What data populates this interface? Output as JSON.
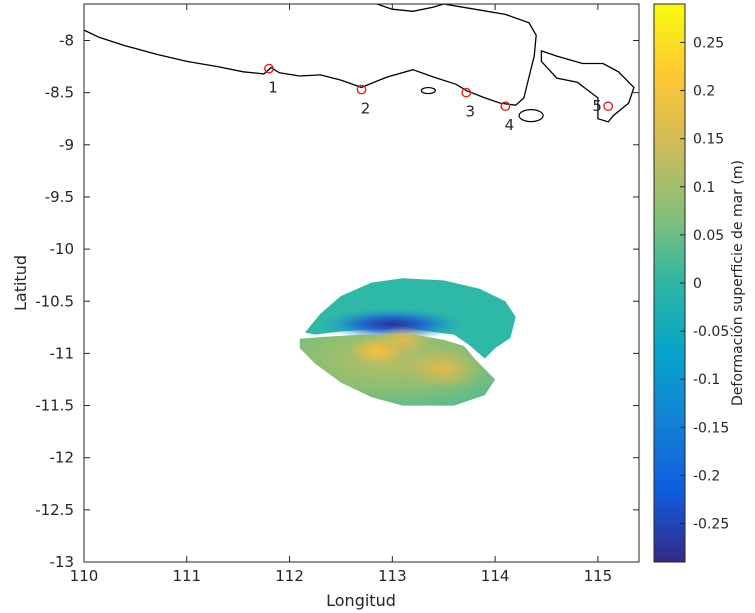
{
  "chart_data": {
    "type": "map",
    "xlabel": "Longitud",
    "ylabel": "Latitud",
    "xlim": [
      110,
      115.4
    ],
    "ylim": [
      -13,
      -7.65
    ],
    "xticks": [
      110,
      111,
      112,
      113,
      114,
      115
    ],
    "yticks": [
      -13,
      -12.5,
      -12,
      -11.5,
      -11,
      -10.5,
      -10,
      -9.5,
      -9,
      -8.5,
      -8
    ],
    "coastline": [
      [
        110.0,
        -7.9
      ],
      [
        110.15,
        -7.97
      ],
      [
        110.4,
        -8.05
      ],
      [
        110.7,
        -8.13
      ],
      [
        111.0,
        -8.2
      ],
      [
        111.3,
        -8.25
      ],
      [
        111.55,
        -8.3
      ],
      [
        111.75,
        -8.32
      ],
      [
        111.82,
        -8.26
      ],
      [
        111.9,
        -8.31
      ],
      [
        112.1,
        -8.34
      ],
      [
        112.3,
        -8.33
      ],
      [
        112.5,
        -8.38
      ],
      [
        112.7,
        -8.45
      ],
      [
        112.95,
        -8.35
      ],
      [
        113.2,
        -8.28
      ],
      [
        113.4,
        -8.35
      ],
      [
        113.62,
        -8.42
      ],
      [
        113.72,
        -8.48
      ],
      [
        113.9,
        -8.55
      ],
      [
        114.05,
        -8.6
      ],
      [
        114.2,
        -8.62
      ],
      [
        114.28,
        -8.55
      ],
      [
        114.33,
        -8.35
      ],
      [
        114.38,
        -8.15
      ],
      [
        114.4,
        -7.95
      ],
      [
        114.33,
        -7.83
      ],
      [
        114.1,
        -7.75
      ],
      [
        113.8,
        -7.7
      ],
      [
        113.5,
        -7.65
      ]
    ],
    "coastline_north": [
      [
        112.85,
        -7.65
      ],
      [
        113.0,
        -7.7
      ],
      [
        113.2,
        -7.72
      ],
      [
        113.4,
        -7.68
      ],
      [
        113.5,
        -7.65
      ]
    ],
    "bali_coastline": [
      [
        114.45,
        -8.1
      ],
      [
        114.6,
        -8.15
      ],
      [
        114.85,
        -8.22
      ],
      [
        115.05,
        -8.22
      ],
      [
        115.2,
        -8.3
      ],
      [
        115.35,
        -8.45
      ],
      [
        115.3,
        -8.6
      ],
      [
        115.15,
        -8.72
      ],
      [
        115.1,
        -8.78
      ],
      [
        115.0,
        -8.75
      ],
      [
        115.0,
        -8.55
      ],
      [
        114.8,
        -8.4
      ],
      [
        114.6,
        -8.36
      ],
      [
        114.45,
        -8.2
      ]
    ],
    "stations": [
      {
        "label": "1",
        "lon": 111.8,
        "lat": -8.27
      },
      {
        "label": "2",
        "lon": 112.7,
        "lat": -8.47
      },
      {
        "label": "3",
        "lon": 113.72,
        "lat": -8.5
      },
      {
        "label": "4",
        "lon": 114.1,
        "lat": -8.63
      },
      {
        "label": "5",
        "lon": 115.1,
        "lat": -8.63
      }
    ],
    "colorbar": {
      "label": "Deformación superficie de mar (m)",
      "limits": [
        -0.29,
        0.29
      ],
      "ticks": [
        -0.25,
        -0.2,
        -0.15,
        -0.1,
        -0.05,
        0,
        0.05,
        0.1,
        0.15,
        0.2,
        0.25
      ],
      "tick_labels": [
        "-0.25",
        "-0.2",
        "-0.15",
        "-0.1",
        "-0.05",
        "0",
        "0.05",
        "0.1",
        "0.15",
        "0.2",
        "0.25"
      ],
      "colormap": "parula",
      "colors": [
        "#352a87",
        "#0f5cdd",
        "#1481d6",
        "#06a4ca",
        "#2eb7a4",
        "#87bf77",
        "#d1bb59",
        "#fec832",
        "#f9fb0e"
      ]
    },
    "deformation": {
      "uplift_lobe": {
        "outline": [
          [
            112.1,
            -10.86
          ],
          [
            112.35,
            -10.84
          ],
          [
            112.7,
            -10.82
          ],
          [
            113.2,
            -10.82
          ],
          [
            113.5,
            -10.87
          ],
          [
            113.7,
            -10.93
          ],
          [
            113.8,
            -11.05
          ],
          [
            113.9,
            -11.15
          ],
          [
            114.0,
            -11.25
          ],
          [
            113.9,
            -11.4
          ],
          [
            113.6,
            -11.5
          ],
          [
            113.1,
            -11.5
          ],
          [
            112.8,
            -11.42
          ],
          [
            112.5,
            -11.28
          ],
          [
            112.25,
            -11.1
          ],
          [
            112.1,
            -10.95
          ]
        ],
        "hotspots": [
          {
            "lon": 112.85,
            "lat": -10.97,
            "value": 0.25
          },
          {
            "lon": 113.1,
            "lat": -10.87,
            "value": 0.18
          },
          {
            "lon": 113.5,
            "lat": -11.15,
            "value": 0.17
          }
        ]
      },
      "subsidence_lobe": {
        "outline": [
          [
            112.15,
            -10.8
          ],
          [
            112.3,
            -10.62
          ],
          [
            112.5,
            -10.45
          ],
          [
            112.8,
            -10.32
          ],
          [
            113.1,
            -10.28
          ],
          [
            113.5,
            -10.3
          ],
          [
            113.85,
            -10.38
          ],
          [
            114.1,
            -10.5
          ],
          [
            114.2,
            -10.65
          ],
          [
            114.15,
            -10.85
          ],
          [
            114.0,
            -10.95
          ],
          [
            113.9,
            -11.05
          ],
          [
            113.75,
            -10.92
          ],
          [
            113.6,
            -10.82
          ],
          [
            113.2,
            -10.77
          ],
          [
            112.8,
            -10.77
          ],
          [
            112.5,
            -10.79
          ],
          [
            112.25,
            -10.82
          ]
        ],
        "trough": {
          "lon": 113.0,
          "lat": -10.72,
          "value": -0.27
        }
      }
    }
  }
}
